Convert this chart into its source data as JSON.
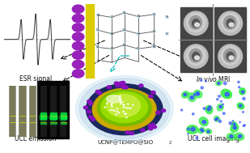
{
  "bg_color": "#ffffff",
  "esr_bg": "#e8e8e8",
  "chem_bg": "#c8e8f5",
  "mri_bg": "#777777",
  "ucl_bg": "#111111",
  "np_bg": "#ffffff",
  "cell_bg": "#050510",
  "labels": {
    "esr": "ESR signal",
    "mri": "In vivo MRI",
    "ucl": "UCL emission",
    "np": "UCNP@TEMPO@SiO",
    "np_sub": "2",
    "cell": "UCL cell imaging"
  },
  "label_fontsize": 5.5,
  "label_color": "#111111",
  "arrow_color": "#000000",
  "cyan_color": "#00bbbb",
  "purple_sphere": "#9922bb",
  "yellow_strip": "#ddcc00",
  "np_colors": {
    "silica_outer": "#99ccee",
    "dark_blue": "#1a2a6e",
    "yellow_ring": "#ccaa00",
    "green_core": "#88cc00",
    "bright_core": "#bbee00",
    "highlight": "#eeffaa",
    "purple_dot": "#8800cc"
  },
  "esr_line_color": "#333333",
  "mri_brain_light": "#cccccc",
  "mri_brain_mid": "#999999",
  "mri_brain_dark": "#555555",
  "mri_bg_cell": "#444444",
  "cell_green": "#33ee44",
  "cell_blue": "#3355ff"
}
